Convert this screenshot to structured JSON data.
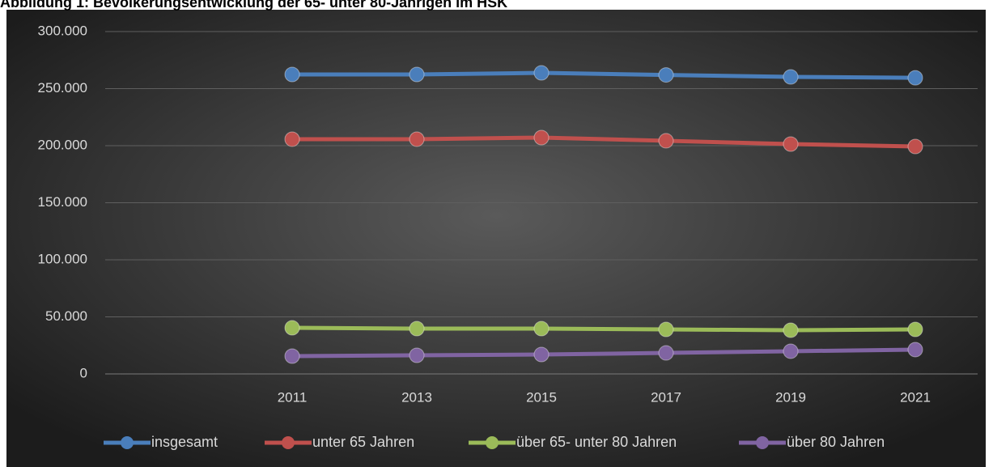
{
  "chart_data": {
    "type": "line",
    "title": "Abbildung 1: Bevölkerungsentwicklung der 65- unter 80-Jährigen im HSK",
    "categories": [
      null,
      "2011",
      "2013",
      "2015",
      "2017",
      "2019",
      "2021"
    ],
    "series": [
      {
        "name": "insgesamt",
        "color": "#4a7ebb",
        "values": [
          null,
          262400,
          262400,
          263800,
          262000,
          260300,
          259500
        ]
      },
      {
        "name": "unter 65 Jahren",
        "color": "#c0504d",
        "values": [
          null,
          205700,
          205700,
          207100,
          204300,
          201400,
          199300
        ]
      },
      {
        "name": "über 65- unter 80 Jahren",
        "color": "#9bbb59",
        "values": [
          null,
          40400,
          39700,
          39700,
          39000,
          38300,
          39000
        ]
      },
      {
        "name": "über 80 Jahren",
        "color": "#8064a2",
        "values": [
          null,
          15600,
          16300,
          17000,
          18400,
          19900,
          21300
        ]
      }
    ],
    "ylim": [
      0,
      300000
    ],
    "yticks": [
      0,
      {
        "value": 50000,
        "label": "50.000"
      },
      {
        "value": 100000,
        "label": "100.000"
      },
      {
        "value": 150000,
        "label": "150.000"
      },
      {
        "value": 200000,
        "label": "200.000"
      },
      {
        "value": 250000,
        "label": "250.000"
      },
      {
        "value": 300000,
        "label": "300.000"
      }
    ],
    "grid": true,
    "legend": "bottom"
  }
}
